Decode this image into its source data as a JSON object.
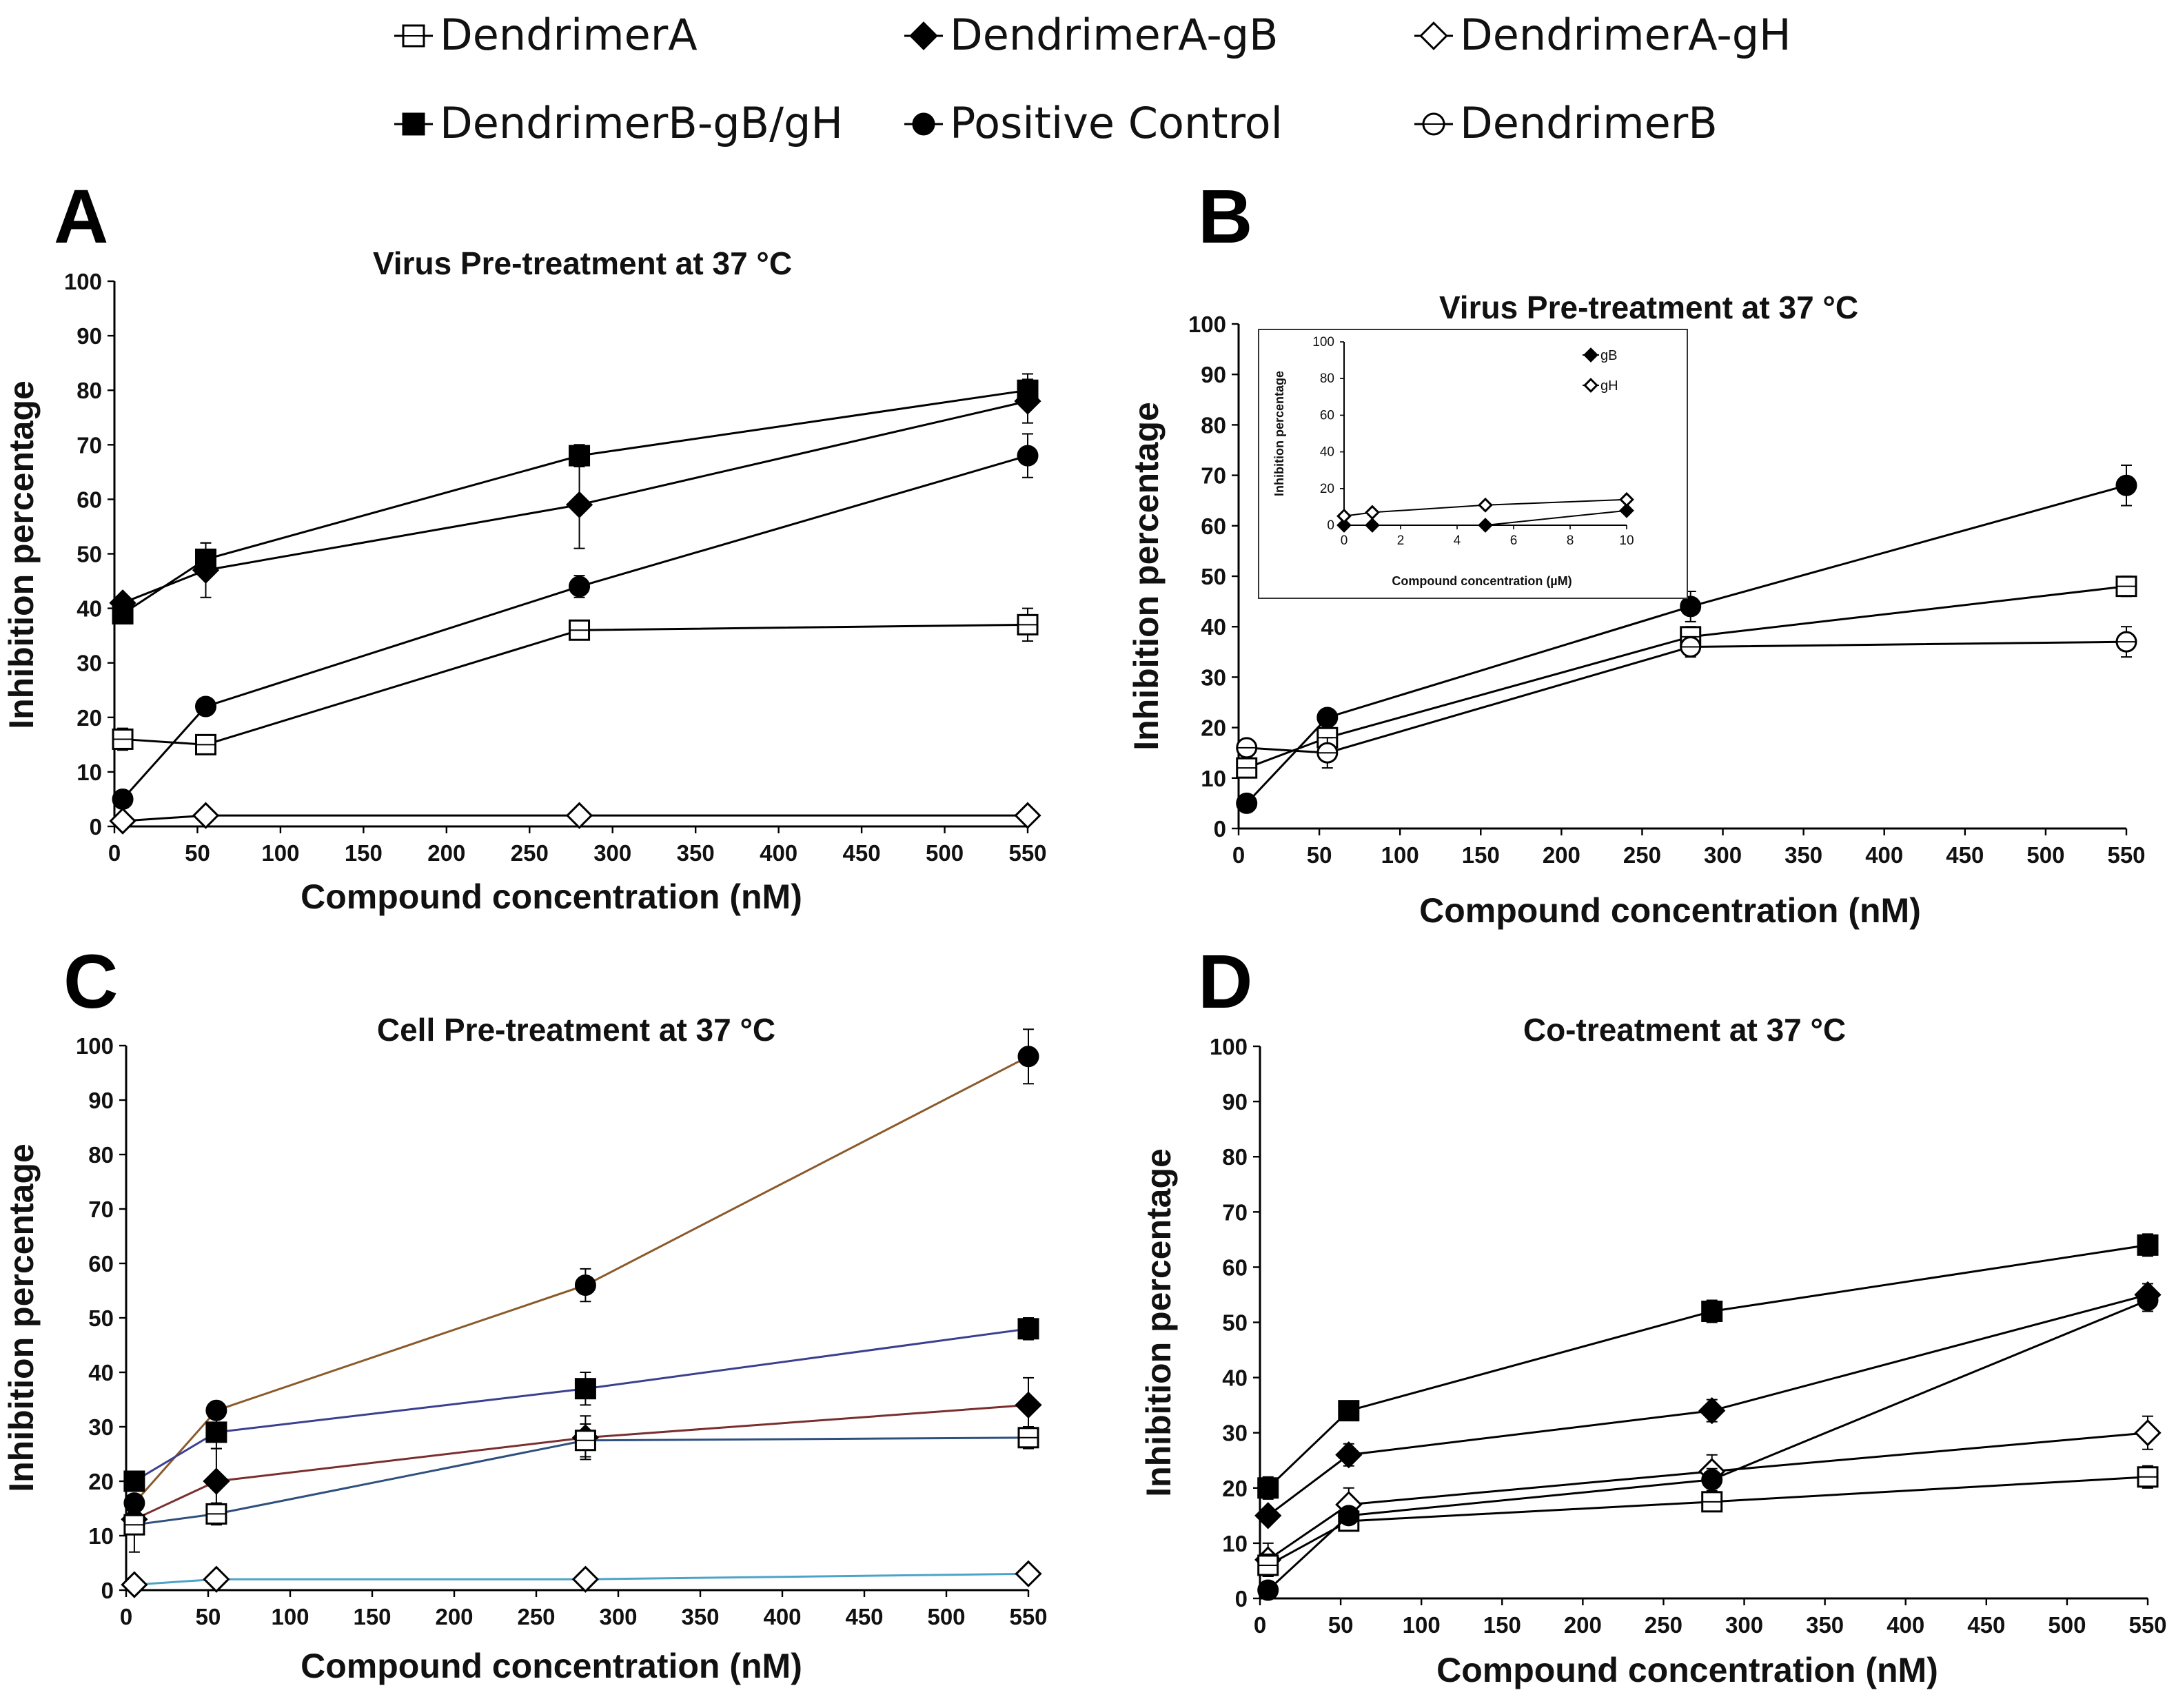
{
  "legend": {
    "entries": [
      {
        "label": "DendrimerA",
        "marker": "square-open"
      },
      {
        "label": "DendrimerA-gB",
        "marker": "diamond-filled"
      },
      {
        "label": "DendrimerA-gH",
        "marker": "diamond-open"
      },
      {
        "label": "DendrimerB-gB/gH",
        "marker": "square-filled"
      },
      {
        "label": "Positive Control",
        "marker": "circle-filled"
      },
      {
        "label": "DendrimerB",
        "marker": "circle-open"
      }
    ]
  },
  "panels": {
    "A": {
      "letter": "A"
    },
    "B": {
      "letter": "B"
    },
    "C": {
      "letter": "C"
    },
    "D": {
      "letter": "D"
    }
  },
  "colors": {
    "ink": "#000000",
    "c_positive_line": "#8B5A2B",
    "c_gbgh_line": "#3B3F8F",
    "c_gb_line": "#7A2E2E",
    "c_dendA_line": "#2F4F7F",
    "c_gh_line": "#4DA3C7",
    "c_gh_tail": "#7F8F3F"
  },
  "chart_data": [
    {
      "panel": "A",
      "type": "line",
      "title": "Virus Pre-treatment at 37 °C",
      "xlabel": "Compound concentration (nM)",
      "ylabel": "Inhibition percentage",
      "xlim": [
        0,
        550
      ],
      "ylim": [
        0,
        100
      ],
      "xticks": [
        0,
        50,
        100,
        150,
        200,
        250,
        300,
        350,
        400,
        450,
        500,
        550
      ],
      "yticks": [
        0,
        10,
        20,
        30,
        40,
        50,
        60,
        70,
        80,
        90,
        100
      ],
      "series": [
        {
          "name": "DendrimerA",
          "marker": "square-open",
          "x": [
            5,
            55,
            280,
            550
          ],
          "y": [
            16,
            15,
            36,
            37
          ],
          "err": [
            2,
            1,
            1,
            3
          ]
        },
        {
          "name": "DendrimerA-gB",
          "marker": "diamond-filled",
          "x": [
            5,
            55,
            280,
            550
          ],
          "y": [
            41,
            47,
            59,
            78
          ],
          "err": [
            1,
            5,
            8,
            4
          ]
        },
        {
          "name": "DendrimerA-gH",
          "marker": "diamond-open",
          "x": [
            5,
            55,
            280,
            550
          ],
          "y": [
            1,
            2,
            2,
            2
          ],
          "err": [
            0.5,
            0.5,
            0.5,
            0.5
          ]
        },
        {
          "name": "DendrimerB-gB/gH",
          "marker": "square-filled",
          "x": [
            5,
            55,
            280,
            550
          ],
          "y": [
            39,
            49,
            68,
            80
          ],
          "err": [
            1,
            3,
            2,
            3
          ]
        },
        {
          "name": "Positive Control",
          "marker": "circle-filled",
          "x": [
            5,
            55,
            280,
            550
          ],
          "y": [
            5,
            22,
            44,
            68
          ],
          "err": [
            0.5,
            1,
            2,
            4
          ]
        }
      ]
    },
    {
      "panel": "B",
      "type": "line",
      "title": "Virus Pre-treatment at 37 °C",
      "xlabel": "Compound concentration (nM)",
      "ylabel": "Inhibition percentage",
      "xlim": [
        0,
        550
      ],
      "ylim": [
        0,
        100
      ],
      "xticks": [
        0,
        50,
        100,
        150,
        200,
        250,
        300,
        350,
        400,
        450,
        500,
        550
      ],
      "yticks": [
        0,
        10,
        20,
        30,
        40,
        50,
        60,
        70,
        80,
        90,
        100
      ],
      "series": [
        {
          "name": "Positive Control",
          "marker": "circle-filled",
          "x": [
            5,
            55,
            280,
            550
          ],
          "y": [
            5,
            22,
            44,
            68
          ],
          "err": [
            0.5,
            1,
            3,
            4
          ]
        },
        {
          "name": "DendrimerA",
          "marker": "square-open",
          "x": [
            5,
            55,
            280,
            550
          ],
          "y": [
            12,
            18,
            38,
            48
          ],
          "err": [
            1,
            2,
            2,
            2
          ]
        },
        {
          "name": "DendrimerB",
          "marker": "circle-open",
          "x": [
            5,
            55,
            280,
            550
          ],
          "y": [
            16,
            15,
            36,
            37
          ],
          "err": [
            1,
            3,
            2,
            3
          ]
        }
      ],
      "inset": {
        "xlabel": "Compound concentration (µM)",
        "ylabel": "Inhibition percentage",
        "xlim": [
          0,
          10
        ],
        "ylim": [
          0,
          100
        ],
        "xticks": [
          0,
          2,
          4,
          6,
          8,
          10
        ],
        "yticks": [
          0,
          20,
          40,
          60,
          80,
          100
        ],
        "legend": [
          "gB",
          "gH"
        ],
        "series": [
          {
            "name": "gB",
            "marker": "diamond-filled",
            "x": [
              0,
              1,
              5,
              10
            ],
            "y": [
              0,
              0,
              0,
              8
            ]
          },
          {
            "name": "gH",
            "marker": "diamond-open",
            "x": [
              0,
              1,
              5,
              10
            ],
            "y": [
              5,
              7,
              11,
              14
            ]
          }
        ]
      }
    },
    {
      "panel": "C",
      "type": "line",
      "title": "Cell Pre-treatment at 37 °C",
      "xlabel": "Compound concentration (nM)",
      "ylabel": "Inhibition percentage",
      "xlim": [
        0,
        550
      ],
      "ylim": [
        0,
        100
      ],
      "xticks": [
        0,
        50,
        100,
        150,
        200,
        250,
        300,
        350,
        400,
        450,
        500,
        550
      ],
      "yticks": [
        0,
        10,
        20,
        30,
        40,
        50,
        60,
        70,
        80,
        90,
        100
      ],
      "series": [
        {
          "name": "Positive Control",
          "marker": "circle-filled",
          "x": [
            5,
            55,
            280,
            550
          ],
          "y": [
            16,
            33,
            56,
            98
          ],
          "err": [
            1,
            1,
            3,
            5
          ],
          "line": "c_positive_line"
        },
        {
          "name": "DendrimerB-gB/gH",
          "marker": "square-filled",
          "x": [
            5,
            55,
            280,
            550
          ],
          "y": [
            20,
            29,
            37,
            48
          ],
          "err": [
            1,
            3,
            3,
            2
          ],
          "line": "c_gbgh_line"
        },
        {
          "name": "DendrimerA-gB",
          "marker": "diamond-filled",
          "x": [
            5,
            55,
            280,
            550
          ],
          "y": [
            13,
            20,
            28,
            34
          ],
          "err": [
            1,
            6,
            4,
            5
          ],
          "line": "c_gb_line"
        },
        {
          "name": "DendrimerA",
          "marker": "square-open",
          "x": [
            5,
            55,
            280,
            550
          ],
          "y": [
            12,
            14,
            27.5,
            28
          ],
          "err": [
            5,
            2,
            3,
            2
          ],
          "line": "c_dendA_line"
        },
        {
          "name": "DendrimerA-gH",
          "marker": "diamond-open",
          "x": [
            5,
            55,
            280,
            550
          ],
          "y": [
            1,
            2,
            2,
            3
          ],
          "err": [
            0.5,
            0.5,
            0.5,
            0.5
          ],
          "line": "c_gh_line"
        }
      ]
    },
    {
      "panel": "D",
      "type": "line",
      "title": "Co-treatment at 37 °C",
      "xlabel": "Compound concentration (nM)",
      "ylabel": "Inhibition percentage",
      "xlim": [
        0,
        550
      ],
      "ylim": [
        0,
        100
      ],
      "xticks": [
        0,
        50,
        100,
        150,
        200,
        250,
        300,
        350,
        400,
        450,
        500,
        550
      ],
      "yticks": [
        0,
        10,
        20,
        30,
        40,
        50,
        60,
        70,
        80,
        90,
        100
      ],
      "series": [
        {
          "name": "DendrimerB-gB/gH",
          "marker": "square-filled",
          "x": [
            5,
            55,
            280,
            550
          ],
          "y": [
            20,
            34,
            52,
            64
          ],
          "err": [
            2,
            1,
            2,
            2
          ]
        },
        {
          "name": "DendrimerA-gB",
          "marker": "diamond-filled",
          "x": [
            5,
            55,
            280,
            550
          ],
          "y": [
            15,
            26,
            34,
            55
          ],
          "err": [
            1,
            2,
            2,
            2
          ]
        },
        {
          "name": "DendrimerA-gH",
          "marker": "diamond-open",
          "x": [
            5,
            55,
            280,
            550
          ],
          "y": [
            7,
            17,
            23,
            30
          ],
          "err": [
            3,
            3,
            3,
            3
          ]
        },
        {
          "name": "DendrimerA",
          "marker": "square-open",
          "x": [
            5,
            55,
            280,
            550
          ],
          "y": [
            6,
            14,
            17.5,
            22
          ],
          "err": [
            2,
            1,
            1,
            2
          ]
        },
        {
          "name": "Positive Control",
          "marker": "circle-filled",
          "x": [
            5,
            55,
            280,
            550
          ],
          "y": [
            1.5,
            15,
            21.5,
            54
          ],
          "err": [
            0.5,
            1,
            2,
            2
          ]
        }
      ]
    }
  ]
}
